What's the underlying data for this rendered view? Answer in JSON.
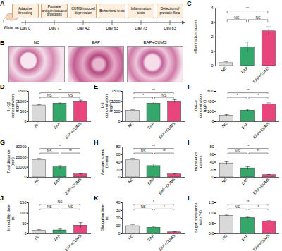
{
  "timeline": {
    "panel_label": "A",
    "subject": "Wistar rat",
    "steps": [
      {
        "day": "Day 0",
        "label": "Adaptive breeding"
      },
      {
        "day": "Day 7",
        "label": "Prostate antigen induced prostatitis"
      },
      {
        "day": "Day 42",
        "label": "CUMS induced depression"
      },
      {
        "day": "Day 63",
        "label": "Behavioral tests"
      },
      {
        "day": "Day 73",
        "label": "Inflammation tests"
      },
      {
        "day": "Day 83",
        "label": "Detection of prostate flora"
      }
    ]
  },
  "histology": {
    "panel_label": "B",
    "images": [
      "NC",
      "EAP",
      "EAP+CUMS"
    ]
  },
  "chart_data": [
    {
      "type": "bar",
      "panel_label": "C",
      "y_label": "Inflammation scores",
      "categories": [
        "NC",
        "EAP",
        "EAP+CUMS"
      ],
      "values": [
        0.2,
        1.3,
        2.4
      ],
      "errors": [
        0.1,
        0.35,
        0.3
      ],
      "colors": [
        "#d9d9d9",
        "#34a86a",
        "#e8457c"
      ],
      "ylim": [
        0,
        4
      ],
      "yticks": [
        0,
        1,
        2,
        3,
        4
      ],
      "significance": [
        {
          "pair": [
            "NC",
            "EAP"
          ],
          "label": "NS"
        },
        {
          "pair": [
            "EAP",
            "EAP+CUMS"
          ],
          "label": "NS"
        },
        {
          "pair": [
            "NC",
            "EAP+CUMS"
          ],
          "label": "**"
        }
      ]
    },
    {
      "type": "bar",
      "panel_label": "D",
      "y_label": "IL-1β concentration (pg/ml)",
      "categories": [
        "NC",
        "EAP",
        "EAP+CUMS"
      ],
      "values": [
        800,
        900,
        1000
      ],
      "errors": [
        40,
        70,
        60
      ],
      "colors": [
        "#d9d9d9",
        "#34a86a",
        "#e8457c"
      ],
      "ylim": [
        0,
        1500
      ],
      "yticks": [
        0,
        500,
        1000,
        1500
      ],
      "significance": [
        {
          "pair": [
            "NC",
            "EAP"
          ],
          "label": "NS"
        },
        {
          "pair": [
            "EAP",
            "EAP+CUMS"
          ],
          "label": "NS"
        },
        {
          "pair": [
            "NC",
            "EAP+CUMS"
          ],
          "label": "**"
        }
      ]
    },
    {
      "type": "bar",
      "panel_label": "E",
      "y_label": "IL-6 concentration (pg/ml)",
      "categories": [
        "NC",
        "EAP",
        "EAP+CUMS"
      ],
      "values": [
        550,
        900,
        1000
      ],
      "errors": [
        50,
        70,
        80
      ],
      "colors": [
        "#d9d9d9",
        "#34a86a",
        "#e8457c"
      ],
      "ylim": [
        0,
        1500
      ],
      "yticks": [
        0,
        500,
        1000,
        1500
      ],
      "significance": [
        {
          "pair": [
            "NC",
            "EAP"
          ],
          "label": "*"
        },
        {
          "pair": [
            "EAP",
            "EAP+CUMS"
          ],
          "label": "NS"
        },
        {
          "pair": [
            "NC",
            "EAP+CUMS"
          ],
          "label": "**"
        }
      ]
    },
    {
      "type": "bar",
      "panel_label": "F",
      "y_label": "TNF-α concentration (pg/ml)",
      "categories": [
        "NC",
        "EAP",
        "EAP+CUMS"
      ],
      "values": [
        120,
        220,
        340
      ],
      "errors": [
        20,
        25,
        30
      ],
      "colors": [
        "#d9d9d9",
        "#34a86a",
        "#e8457c"
      ],
      "ylim": [
        0,
        600
      ],
      "yticks": [
        0,
        200,
        400,
        600
      ],
      "significance": [
        {
          "pair": [
            "NC",
            "EAP"
          ],
          "label": "*"
        },
        {
          "pair": [
            "EAP",
            "EAP+CUMS"
          ],
          "label": "*"
        },
        {
          "pair": [
            "NC",
            "EAP+CUMS"
          ],
          "label": "**"
        }
      ]
    },
    {
      "type": "bar",
      "panel_label": "G",
      "y_label": "Total distance (mm)",
      "categories": [
        "NC",
        "EAP",
        "EAP+CUMS"
      ],
      "values": [
        17000,
        10000,
        3000
      ],
      "errors": [
        1700,
        1500,
        600
      ],
      "colors": [
        "#d9d9d9",
        "#34a86a",
        "#e8457c"
      ],
      "ylim": [
        0,
        30000
      ],
      "yticks": [
        0,
        10000,
        20000,
        30000
      ],
      "significance": [
        {
          "pair": [
            "NC",
            "EAP"
          ],
          "label": "NS"
        },
        {
          "pair": [
            "EAP",
            "EAP+CUMS"
          ],
          "label": "**"
        },
        {
          "pair": [
            "NC",
            "EAP+CUMS"
          ],
          "label": "**"
        }
      ]
    },
    {
      "type": "bar",
      "panel_label": "H",
      "y_label": "Average speed (mm/s)",
      "categories": [
        "NC",
        "EAP",
        "EAP+CUMS"
      ],
      "values": [
        45,
        30,
        8
      ],
      "errors": [
        5,
        5,
        2
      ],
      "colors": [
        "#d9d9d9",
        "#34a86a",
        "#e8457c"
      ],
      "ylim": [
        0,
        80
      ],
      "yticks": [
        0,
        20,
        40,
        60,
        80
      ],
      "significance": [
        {
          "pair": [
            "NC",
            "EAP"
          ],
          "label": "NS"
        },
        {
          "pair": [
            "EAP",
            "EAP+CUMS"
          ],
          "label": "**"
        },
        {
          "pair": [
            "NC",
            "EAP+CUMS"
          ],
          "label": "**"
        }
      ]
    },
    {
      "type": "bar",
      "panel_label": "I",
      "y_label": "Number of passes",
      "categories": [
        "NC",
        "EAP",
        "EAP+CUMS"
      ],
      "values": [
        37,
        24,
        6
      ],
      "errors": [
        4,
        4,
        1.5
      ],
      "colors": [
        "#d9d9d9",
        "#34a86a",
        "#e8457c"
      ],
      "ylim": [
        0,
        80
      ],
      "yticks": [
        0,
        20,
        40,
        60,
        80
      ],
      "significance": [
        {
          "pair": [
            "NC",
            "EAP"
          ],
          "label": "NS"
        },
        {
          "pair": [
            "EAP",
            "EAP+CUMS"
          ],
          "label": "**"
        },
        {
          "pair": [
            "NC",
            "EAP+CUMS"
          ],
          "label": "**"
        }
      ]
    },
    {
      "type": "bar",
      "panel_label": "J",
      "y_label": "Immobility time (s)",
      "categories": [
        "NC",
        "EAP",
        "EAP+CUMS"
      ],
      "values": [
        15,
        17,
        40
      ],
      "errors": [
        5,
        6,
        14
      ],
      "colors": [
        "#d9d9d9",
        "#34a86a",
        "#e8457c"
      ],
      "ylim": [
        0,
        150
      ],
      "yticks": [
        0,
        50,
        100,
        150
      ],
      "significance": [
        {
          "pair": [
            "NC",
            "EAP"
          ],
          "label": "NS"
        },
        {
          "pair": [
            "EAP",
            "EAP+CUMS"
          ],
          "label": "NS"
        },
        {
          "pair": [
            "NC",
            "EAP+CUMS"
          ],
          "label": "NS"
        }
      ]
    },
    {
      "type": "bar",
      "panel_label": "K",
      "y_label": "Struggling time (s)",
      "categories": [
        "NC",
        "EAP",
        "EAP+CUMS"
      ],
      "values": [
        10,
        8,
        2
      ],
      "errors": [
        2,
        1.5,
        0.8
      ],
      "colors": [
        "#d9d9d9",
        "#34a86a",
        "#e8457c"
      ],
      "ylim": [
        0,
        40
      ],
      "yticks": [
        0,
        10,
        20,
        30,
        40
      ],
      "significance": [
        {
          "pair": [
            "NC",
            "EAP"
          ],
          "label": "NS"
        },
        {
          "pair": [
            "EAP",
            "EAP+CUMS"
          ],
          "label": "*"
        },
        {
          "pair": [
            "NC",
            "EAP+CUMS"
          ],
          "label": "*"
        }
      ]
    },
    {
      "type": "bar",
      "panel_label": "L",
      "y_label": "Sugar preference ratio (%)",
      "categories": [
        "NC",
        "EAP",
        "EAP+CUMS"
      ],
      "values": [
        0.88,
        0.77,
        0.6
      ],
      "errors": [
        0.02,
        0.03,
        0.05
      ],
      "colors": [
        "#d9d9d9",
        "#34a86a",
        "#e8457c"
      ],
      "ylim": [
        0,
        1.5
      ],
      "yticks": [
        {
          "value": 0,
          "label": "0.0"
        },
        0.5,
        {
          "value": 1,
          "label": "1.0"
        },
        1.5
      ],
      "significance": [
        {
          "pair": [
            "NC",
            "EAP"
          ],
          "label": "NS"
        },
        {
          "pair": [
            "EAP",
            "EAP+CUMS"
          ],
          "label": "*"
        },
        {
          "pair": [
            "NC",
            "EAP+CUMS"
          ],
          "label": "**"
        }
      ]
    }
  ]
}
